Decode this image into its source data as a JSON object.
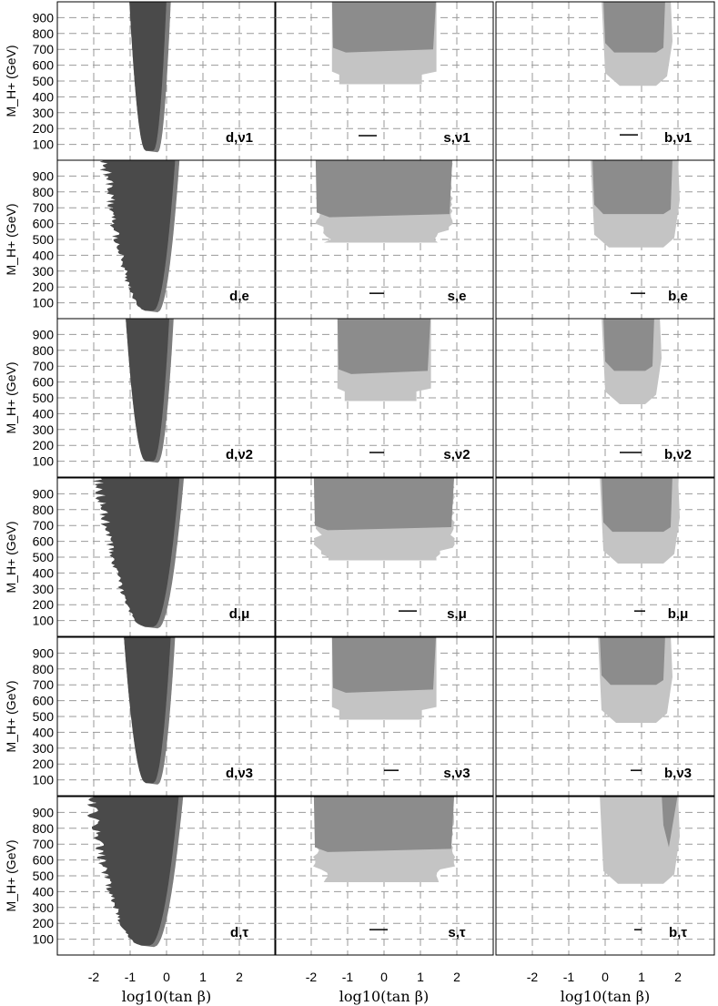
{
  "chart_data": {
    "type": "area",
    "grid": true,
    "columns": 3,
    "rows": 6,
    "xlim": [
      -3,
      3
    ],
    "ylim": [
      0,
      1000
    ],
    "xticks": [
      -2,
      -1,
      0,
      1,
      2
    ],
    "yticks": [
      100,
      200,
      300,
      400,
      500,
      600,
      700,
      800,
      900
    ],
    "ylabel": "M_H+ (GeV)",
    "xlabel": "log10(tan β)",
    "colors": {
      "dark": "#4a4a4a",
      "dark_rim": "#7c7c7c",
      "medium": "#8c8c8c",
      "light": "#c4c4c4",
      "grid": "#9a9a9a",
      "frame": "#000000"
    },
    "panels": [
      {
        "col": "d",
        "row": 0,
        "label": "d,ν1",
        "kind": "d",
        "xmin": -0.5,
        "halfwidth": 0.45,
        "ymin": 60,
        "ragged": false
      },
      {
        "col": "s",
        "row": 0,
        "label": "s,ν1",
        "kind": "s",
        "left": -1.45,
        "right": 1.45,
        "light_bottom": 480,
        "medium_bottom": 690,
        "segment": [
          -0.7,
          -0.2,
          155
        ]
      },
      {
        "col": "b",
        "row": 0,
        "label": "b,ν1",
        "kind": "b",
        "left": -0.1,
        "right_top": 1.8,
        "light_bottom": 470,
        "medium_bottom": 680,
        "segment": [
          0.4,
          0.9,
          160
        ]
      },
      {
        "col": "d",
        "row": 1,
        "label": "d,e",
        "kind": "d",
        "xmin": -0.5,
        "halfwidth": 0.75,
        "ymin": 50,
        "ragged": true
      },
      {
        "col": "s",
        "row": 1,
        "label": "s,e",
        "kind": "s",
        "left": -1.9,
        "right": 1.9,
        "light_bottom": 470,
        "medium_bottom": 650,
        "segment": [
          -0.4,
          0.0,
          160
        ]
      },
      {
        "col": "b",
        "row": 1,
        "label": "b,e",
        "kind": "b",
        "left": -0.4,
        "right_top": 2.0,
        "light_bottom": 450,
        "medium_bottom": 660,
        "segment": [
          0.7,
          1.1,
          160
        ]
      },
      {
        "col": "d",
        "row": 2,
        "label": "d,ν2",
        "kind": "d",
        "xmin": -0.5,
        "halfwidth": 0.55,
        "ymin": 100,
        "ragged": false
      },
      {
        "col": "s",
        "row": 2,
        "label": "s,ν2",
        "kind": "s",
        "left": -1.3,
        "right": 1.3,
        "light_bottom": 480,
        "medium_bottom": 660,
        "segment": [
          -0.4,
          0.0,
          155
        ]
      },
      {
        "col": "b",
        "row": 2,
        "label": "b,ν2",
        "kind": "b",
        "left": -0.1,
        "right_top": 1.5,
        "light_bottom": 460,
        "medium_bottom": 670,
        "segment": [
          0.4,
          1.0,
          155
        ]
      },
      {
        "col": "d",
        "row": 3,
        "label": "d,μ",
        "kind": "d",
        "xmin": -0.5,
        "halfwidth": 0.9,
        "ymin": 60,
        "ragged": true
      },
      {
        "col": "s",
        "row": 3,
        "label": "s,μ",
        "kind": "s",
        "left": -1.95,
        "right": 1.95,
        "light_bottom": 470,
        "medium_bottom": 680,
        "segment": [
          0.4,
          0.9,
          160
        ]
      },
      {
        "col": "b",
        "row": 3,
        "label": "b,μ",
        "kind": "b",
        "left": -0.15,
        "right_top": 2.0,
        "light_bottom": 460,
        "medium_bottom": 660,
        "segment": [
          0.8,
          1.1,
          160
        ]
      },
      {
        "col": "d",
        "row": 4,
        "label": "d,ν3",
        "kind": "d",
        "xmin": -0.5,
        "halfwidth": 0.6,
        "ymin": 80,
        "ragged": false
      },
      {
        "col": "s",
        "row": 4,
        "label": "s,ν3",
        "kind": "s",
        "left": -1.45,
        "right": 1.45,
        "light_bottom": 470,
        "medium_bottom": 660,
        "segment": [
          0.0,
          0.4,
          160
        ]
      },
      {
        "col": "b",
        "row": 4,
        "label": "b,ν3",
        "kind": "b",
        "left": -0.2,
        "right_top": 1.8,
        "light_bottom": 460,
        "medium_bottom": 700,
        "segment": [
          0.7,
          1.0,
          160
        ]
      },
      {
        "col": "d",
        "row": 5,
        "label": "d,τ",
        "kind": "d",
        "xmin": -0.6,
        "halfwidth": 1.0,
        "ymin": 60,
        "ragged": true
      },
      {
        "col": "s",
        "row": 5,
        "label": "s,τ",
        "kind": "s",
        "left": -1.95,
        "right": 1.95,
        "light_bottom": 460,
        "medium_bottom": 660,
        "segment": [
          -0.4,
          0.1,
          160
        ]
      },
      {
        "col": "b",
        "row": 5,
        "label": "b,τ",
        "kind": "bt",
        "left": -0.15,
        "right_top": 2.0,
        "light_bottom": 450,
        "medium_bottom": 680,
        "segment": [
          0.8,
          1.0,
          160
        ]
      }
    ]
  }
}
